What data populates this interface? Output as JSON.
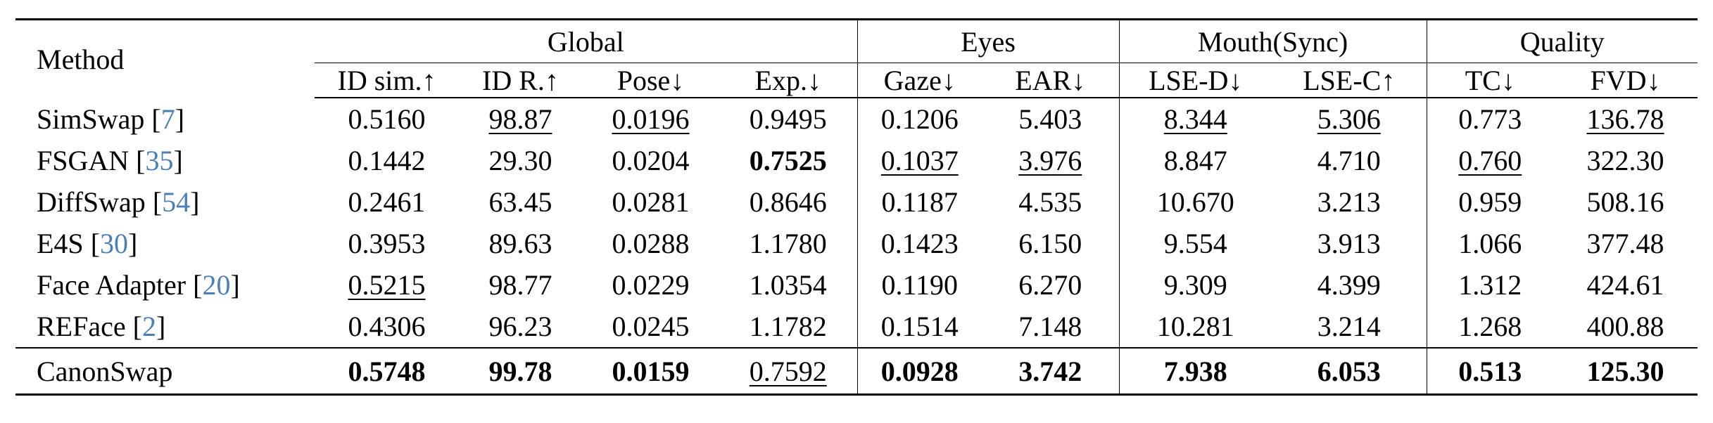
{
  "header": {
    "method_label": "Method",
    "groups": [
      "Global",
      "Eyes",
      "Mouth(Sync)",
      "Quality"
    ],
    "metrics": [
      "ID sim.↑",
      "ID R.↑",
      "Pose↓",
      "Exp.↓",
      "Gaze↓",
      "EAR↓",
      "LSE-D↓",
      "LSE-C↑",
      "TC↓",
      "FVD↓"
    ]
  },
  "rows": [
    {
      "name": "SimSwap",
      "ref": "7",
      "values": [
        "0.5160",
        "98.87",
        "0.0196",
        "0.9495",
        "0.1206",
        "5.403",
        "8.344",
        "5.306",
        "0.773",
        "136.78"
      ],
      "underline": [
        false,
        true,
        true,
        false,
        false,
        false,
        true,
        true,
        false,
        true
      ],
      "bold": [
        false,
        false,
        false,
        false,
        false,
        false,
        false,
        false,
        false,
        false
      ]
    },
    {
      "name": "FSGAN",
      "ref": "35",
      "values": [
        "0.1442",
        "29.30",
        "0.0204",
        "0.7525",
        "0.1037",
        "3.976",
        "8.847",
        "4.710",
        "0.760",
        "322.30"
      ],
      "underline": [
        false,
        false,
        false,
        false,
        true,
        true,
        false,
        false,
        true,
        false
      ],
      "bold": [
        false,
        false,
        false,
        true,
        false,
        false,
        false,
        false,
        false,
        false
      ]
    },
    {
      "name": "DiffSwap",
      "ref": "54",
      "values": [
        "0.2461",
        "63.45",
        "0.0281",
        "0.8646",
        "0.1187",
        "4.535",
        "10.670",
        "3.213",
        "0.959",
        "508.16"
      ],
      "underline": [
        false,
        false,
        false,
        false,
        false,
        false,
        false,
        false,
        false,
        false
      ],
      "bold": [
        false,
        false,
        false,
        false,
        false,
        false,
        false,
        false,
        false,
        false
      ]
    },
    {
      "name": "E4S",
      "ref": "30",
      "values": [
        "0.3953",
        "89.63",
        "0.0288",
        "1.1780",
        "0.1423",
        "6.150",
        "9.554",
        "3.913",
        "1.066",
        "377.48"
      ],
      "underline": [
        false,
        false,
        false,
        false,
        false,
        false,
        false,
        false,
        false,
        false
      ],
      "bold": [
        false,
        false,
        false,
        false,
        false,
        false,
        false,
        false,
        false,
        false
      ]
    },
    {
      "name": "Face Adapter",
      "ref": "20",
      "values": [
        "0.5215",
        "98.77",
        "0.0229",
        "1.0354",
        "0.1190",
        "6.270",
        "9.309",
        "4.399",
        "1.312",
        "424.61"
      ],
      "underline": [
        true,
        false,
        false,
        false,
        false,
        false,
        false,
        false,
        false,
        false
      ],
      "bold": [
        false,
        false,
        false,
        false,
        false,
        false,
        false,
        false,
        false,
        false
      ]
    },
    {
      "name": "REFace",
      "ref": "2",
      "values": [
        "0.4306",
        "96.23",
        "0.0245",
        "1.1782",
        "0.1514",
        "7.148",
        "10.281",
        "3.214",
        "1.268",
        "400.88"
      ],
      "underline": [
        false,
        false,
        false,
        false,
        false,
        false,
        false,
        false,
        false,
        false
      ],
      "bold": [
        false,
        false,
        false,
        false,
        false,
        false,
        false,
        false,
        false,
        false
      ]
    }
  ],
  "ours": {
    "name": "CanonSwap",
    "values": [
      "0.5748",
      "99.78",
      "0.0159",
      "0.7592",
      "0.0928",
      "3.742",
      "7.938",
      "6.053",
      "0.513",
      "125.30"
    ],
    "underline": [
      false,
      false,
      false,
      true,
      false,
      false,
      false,
      false,
      false,
      false
    ],
    "bold": [
      true,
      true,
      true,
      false,
      true,
      true,
      true,
      true,
      true,
      true
    ]
  }
}
